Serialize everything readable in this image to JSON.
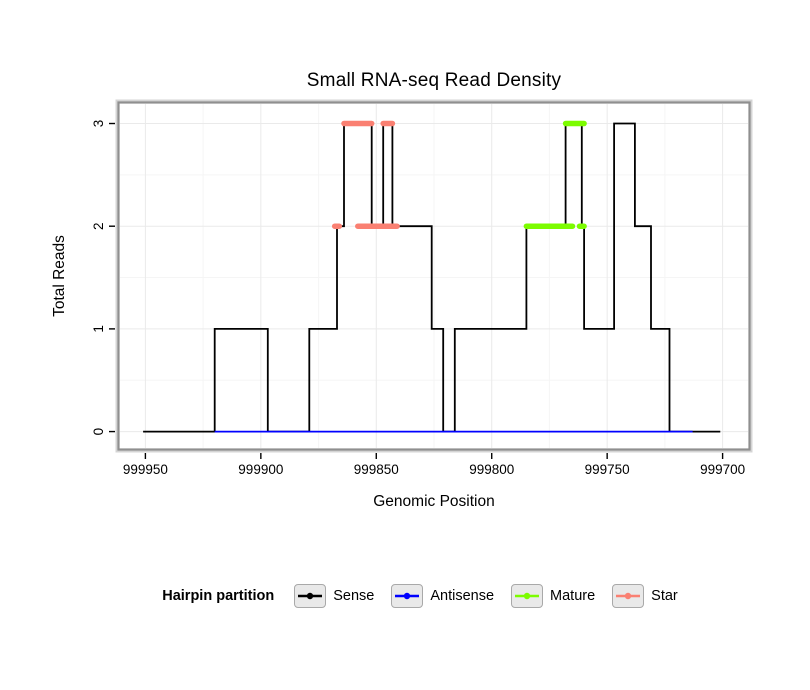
{
  "legend": {
    "title": "Hairpin partition"
  },
  "chart_data": {
    "type": "line",
    "line_style": "step",
    "title": "Small RNA-seq Read Density",
    "xlabel": "Genomic Position",
    "ylabel": "Total Reads",
    "x_axis_reversed": true,
    "xlim": [
      999961,
      999689
    ],
    "ylim": [
      -0.16,
      3.19
    ],
    "x_ticks": [
      999950,
      999900,
      999850,
      999800,
      999750,
      999700
    ],
    "y_ticks": [
      0,
      1,
      2,
      3
    ],
    "grid": true,
    "grid_color": "#eaeaea",
    "panel_border_color": "#8f8f8f",
    "legend_position": "bottom",
    "series": [
      {
        "name": "Sense",
        "color": "#000000",
        "kind": "step-line",
        "points": [
          [
            999951,
            0
          ],
          [
            999920,
            1
          ],
          [
            999897,
            0
          ],
          [
            999879,
            1
          ],
          [
            999867,
            2
          ],
          [
            999864,
            3
          ],
          [
            999852,
            2
          ],
          [
            999847,
            3
          ],
          [
            999843,
            2
          ],
          [
            999826,
            1
          ],
          [
            999821,
            0
          ],
          [
            999816,
            1
          ],
          [
            999785,
            2
          ],
          [
            999768,
            3
          ],
          [
            999761,
            2
          ],
          [
            999760,
            1
          ],
          [
            999747,
            3
          ],
          [
            999738,
            2
          ],
          [
            999731,
            1
          ],
          [
            999723,
            0
          ],
          [
            999701,
            0
          ]
        ]
      },
      {
        "name": "Antisense",
        "color": "#0000ff",
        "kind": "step-line",
        "points": [
          [
            999920,
            0
          ],
          [
            999713,
            0
          ]
        ]
      },
      {
        "name": "Mature",
        "color": "#7cfc00",
        "kind": "segments",
        "segments": [
          {
            "y": 2,
            "from": 999785,
            "to": 999765
          },
          {
            "y": 3,
            "from": 999768,
            "to": 999760
          },
          {
            "y": 2,
            "from": 999762,
            "to": 999760
          }
        ]
      },
      {
        "name": "Star",
        "color": "#fa8072",
        "kind": "segments",
        "segments": [
          {
            "y": 2,
            "from": 999868,
            "to": 999866
          },
          {
            "y": 3,
            "from": 999864,
            "to": 999852
          },
          {
            "y": 2,
            "from": 999858,
            "to": 999841
          },
          {
            "y": 3,
            "from": 999847,
            "to": 999843
          }
        ]
      }
    ]
  }
}
